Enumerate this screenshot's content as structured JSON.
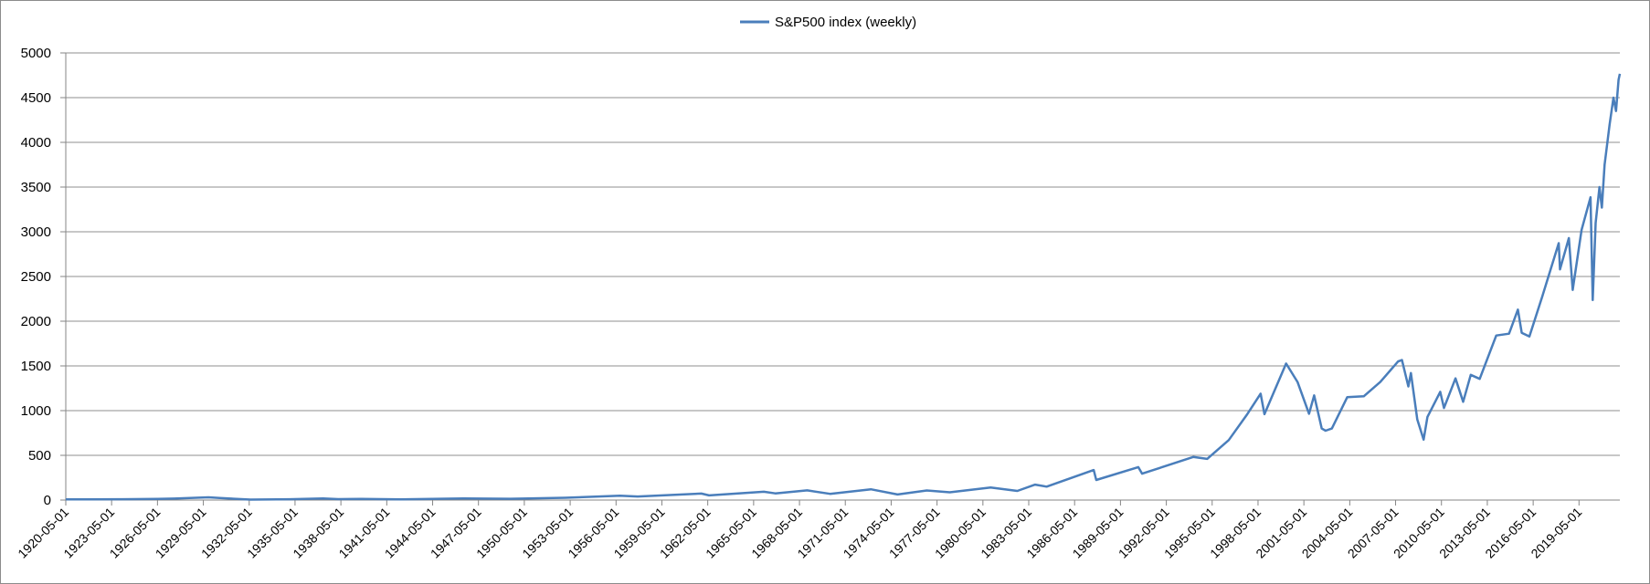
{
  "chart_data": {
    "type": "line",
    "title": "",
    "xlabel": "",
    "ylabel": "",
    "xlim": [
      "1920-05-01",
      "2022-01-01"
    ],
    "ylim": [
      0,
      5000
    ],
    "y_ticks": [
      0,
      500,
      1000,
      1500,
      2000,
      2500,
      3000,
      3500,
      4000,
      4500,
      5000
    ],
    "x_tick_labels": [
      "1920-05-01",
      "1923-05-01",
      "1926-05-01",
      "1929-05-01",
      "1932-05-01",
      "1935-05-01",
      "1938-05-01",
      "1941-05-01",
      "1944-05-01",
      "1947-05-01",
      "1950-05-01",
      "1953-05-01",
      "1956-05-01",
      "1959-05-01",
      "1962-05-01",
      "1965-05-01",
      "1968-05-01",
      "1971-05-01",
      "1974-05-01",
      "1977-05-01",
      "1980-05-01",
      "1983-05-01",
      "1986-05-01",
      "1989-05-01",
      "1992-05-01",
      "1995-05-01",
      "1998-05-01",
      "2001-05-01",
      "2004-05-01",
      "2007-05-01",
      "2010-05-01",
      "2013-05-01",
      "2016-05-01",
      "2019-05-01"
    ],
    "grid": "horizontal",
    "legend_position": "top-center",
    "series": [
      {
        "name": "S&P500 index (weekly)",
        "color": "#4a7ebb",
        "points": [
          [
            "1920-05-01",
            8
          ],
          [
            "1921-08-01",
            7
          ],
          [
            "1924-01-01",
            9
          ],
          [
            "1926-05-01",
            12
          ],
          [
            "1927-06-01",
            16
          ],
          [
            "1929-09-01",
            31
          ],
          [
            "1930-06-01",
            22
          ],
          [
            "1932-06-01",
            5
          ],
          [
            "1935-01-01",
            9
          ],
          [
            "1937-03-01",
            18
          ],
          [
            "1938-03-01",
            10
          ],
          [
            "1939-09-01",
            13
          ],
          [
            "1942-04-01",
            8
          ],
          [
            "1946-05-01",
            18
          ],
          [
            "1949-06-01",
            14
          ],
          [
            "1953-01-01",
            26
          ],
          [
            "1956-08-01",
            48
          ],
          [
            "1957-10-01",
            40
          ],
          [
            "1961-12-01",
            72
          ],
          [
            "1962-06-01",
            52
          ],
          [
            "1966-01-01",
            93
          ],
          [
            "1966-10-01",
            74
          ],
          [
            "1968-11-01",
            108
          ],
          [
            "1970-05-01",
            69
          ],
          [
            "1973-01-01",
            120
          ],
          [
            "1974-10-01",
            62
          ],
          [
            "1976-09-01",
            107
          ],
          [
            "1978-03-01",
            87
          ],
          [
            "1980-11-01",
            140
          ],
          [
            "1982-08-01",
            102
          ],
          [
            "1983-10-01",
            172
          ],
          [
            "1984-07-01",
            150
          ],
          [
            "1987-08-01",
            336
          ],
          [
            "1987-10-01",
            224
          ],
          [
            "1990-07-01",
            368
          ],
          [
            "1990-10-01",
            295
          ],
          [
            "1994-02-01",
            482
          ],
          [
            "1995-01-01",
            460
          ],
          [
            "1996-06-01",
            670
          ],
          [
            "1997-08-01",
            950
          ],
          [
            "1998-07-01",
            1190
          ],
          [
            "1998-10-01",
            960
          ],
          [
            "2000-03-01",
            1527
          ],
          [
            "2000-12-01",
            1320
          ],
          [
            "2001-09-01",
            965
          ],
          [
            "2002-01-01",
            1170
          ],
          [
            "2002-07-01",
            800
          ],
          [
            "2002-10-01",
            776
          ],
          [
            "2003-03-01",
            800
          ],
          [
            "2004-03-01",
            1150
          ],
          [
            "2005-04-01",
            1160
          ],
          [
            "2006-05-01",
            1320
          ],
          [
            "2007-07-01",
            1550
          ],
          [
            "2007-10-01",
            1565
          ],
          [
            "2008-03-01",
            1270
          ],
          [
            "2008-05-01",
            1420
          ],
          [
            "2008-10-01",
            900
          ],
          [
            "2009-03-01",
            676
          ],
          [
            "2009-06-01",
            930
          ],
          [
            "2010-04-01",
            1210
          ],
          [
            "2010-07-01",
            1030
          ],
          [
            "2011-04-01",
            1360
          ],
          [
            "2011-10-01",
            1099
          ],
          [
            "2012-04-01",
            1400
          ],
          [
            "2012-11-01",
            1355
          ],
          [
            "2013-12-01",
            1840
          ],
          [
            "2014-10-01",
            1860
          ],
          [
            "2015-05-01",
            2130
          ],
          [
            "2015-08-01",
            1870
          ],
          [
            "2016-02-01",
            1830
          ],
          [
            "2016-12-01",
            2270
          ],
          [
            "2018-01-01",
            2872
          ],
          [
            "2018-02-01",
            2580
          ],
          [
            "2018-09-01",
            2930
          ],
          [
            "2018-12-01",
            2350
          ],
          [
            "2019-07-01",
            3020
          ],
          [
            "2020-02-01",
            3386
          ],
          [
            "2020-03-23",
            2237
          ],
          [
            "2020-06-01",
            3100
          ],
          [
            "2020-09-01",
            3500
          ],
          [
            "2020-10-28",
            3270
          ],
          [
            "2021-01-01",
            3750
          ],
          [
            "2021-05-01",
            4200
          ],
          [
            "2021-08-01",
            4500
          ],
          [
            "2021-10-01",
            4350
          ],
          [
            "2021-12-01",
            4700
          ],
          [
            "2021-12-31",
            4766
          ]
        ]
      }
    ]
  }
}
